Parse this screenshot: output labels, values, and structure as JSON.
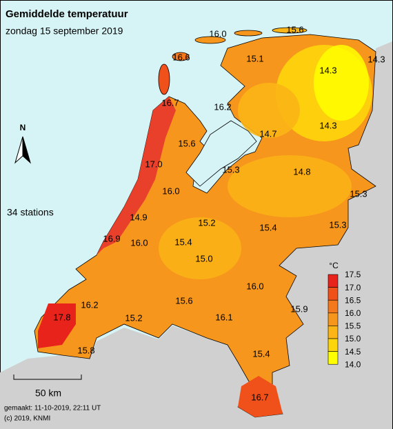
{
  "header": {
    "title": "Gemiddelde temperatuur",
    "subtitle": "zondag 15 september 2019"
  },
  "station_count": "34 stations",
  "north": "N",
  "scale": "50 km",
  "footer": {
    "made": "gemaakt: 11-10-2019, 22:11 UT",
    "copyright": "(c) 2019, KNMI"
  },
  "legend": {
    "unit": "°C",
    "ticks": [
      "17.5",
      "17.0",
      "16.5",
      "16.0",
      "15.5",
      "15.0",
      "14.5",
      "14.0"
    ],
    "colors": [
      "#e8231b",
      "#f0501a",
      "#f4781c",
      "#f7961d",
      "#fbb516",
      "#fdd50c",
      "#ffff00"
    ]
  },
  "stations": [
    {
      "label": "16.0"
    },
    {
      "label": "15.6"
    },
    {
      "label": "16.6"
    },
    {
      "label": "15.1"
    },
    {
      "label": "14.3"
    },
    {
      "label": "14.3"
    },
    {
      "label": "16.7"
    },
    {
      "label": "16.2"
    },
    {
      "label": "14.7"
    },
    {
      "label": "14.3"
    },
    {
      "label": "15.6"
    },
    {
      "label": "17.0"
    },
    {
      "label": "15.3"
    },
    {
      "label": "14.8"
    },
    {
      "label": "15.3"
    },
    {
      "label": "16.0"
    },
    {
      "label": "14.9"
    },
    {
      "label": "15.2"
    },
    {
      "label": "15.4"
    },
    {
      "label": "15.3"
    },
    {
      "label": "16.9"
    },
    {
      "label": "16.0"
    },
    {
      "label": "15.4"
    },
    {
      "label": "15.0"
    },
    {
      "label": "16.0"
    },
    {
      "label": "15.9"
    },
    {
      "label": "16.2"
    },
    {
      "label": "15.6"
    },
    {
      "label": "15.2"
    },
    {
      "label": "16.1"
    },
    {
      "label": "17.8"
    },
    {
      "label": "15.8"
    },
    {
      "label": "15.4"
    },
    {
      "label": "16.7"
    }
  ]
}
